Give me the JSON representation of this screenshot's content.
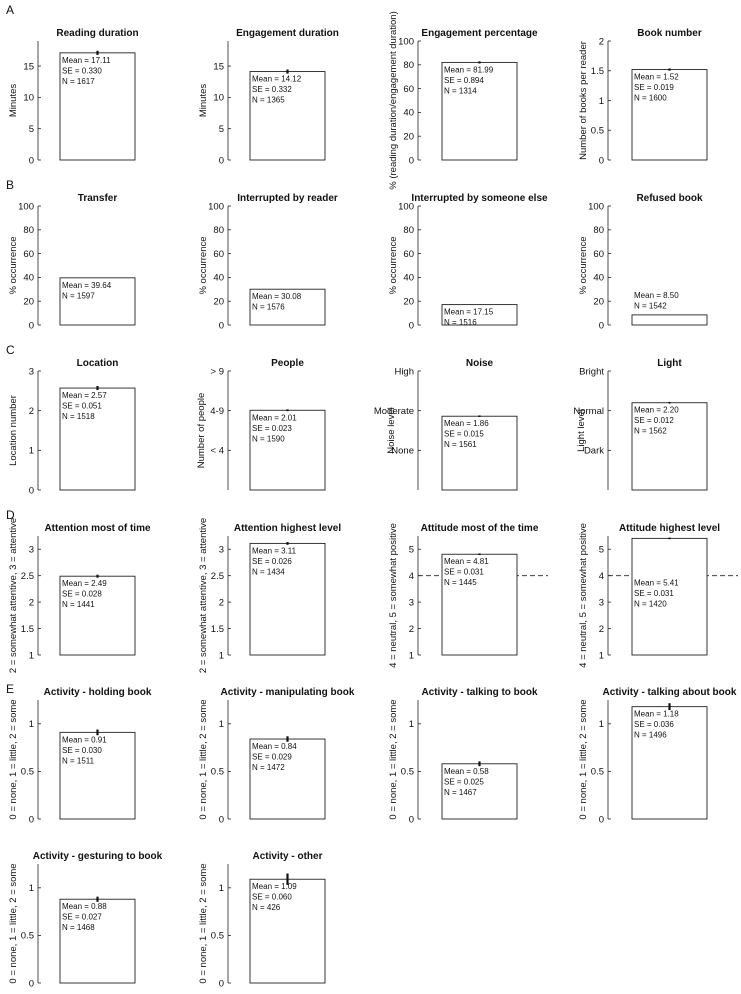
{
  "figure": {
    "section_labels": [
      "A",
      "B",
      "C",
      "D",
      "E"
    ]
  },
  "chart_data": [
    {
      "type": "bar",
      "title": "Reading duration",
      "ylabel": "Minutes",
      "ylim": [
        0,
        19
      ],
      "yticks": [
        0,
        5,
        10,
        15
      ],
      "value": 17.11,
      "se": 0.33,
      "n": 1617,
      "annotation": [
        "Mean = 17.11",
        "SE = 0.330",
        "N = 1617"
      ],
      "ann_pos": "inside"
    },
    {
      "type": "bar",
      "title": "Engagement duration",
      "ylabel": "Minutes",
      "ylim": [
        0,
        19
      ],
      "yticks": [
        0,
        5,
        10,
        15
      ],
      "value": 14.12,
      "se": 0.332,
      "n": 1365,
      "annotation": [
        "Mean = 14.12",
        "SE = 0.332",
        "N = 1365"
      ],
      "ann_pos": "inside"
    },
    {
      "type": "bar",
      "title": "Engagement percentage",
      "ylabel": "% (reading duration/engagement duration)",
      "ylim": [
        0,
        100
      ],
      "yticks": [
        0,
        20,
        40,
        60,
        80,
        100
      ],
      "value": 81.99,
      "se": 0.894,
      "n": 1314,
      "annotation": [
        "Mean = 81.99",
        "SE = 0.894",
        "N = 1314"
      ],
      "ann_pos": "inside"
    },
    {
      "type": "bar",
      "title": "Book number",
      "ylabel": "Number of books per reader",
      "ylim": [
        0,
        2
      ],
      "yticks": [
        0,
        0.5,
        1,
        1.5,
        2
      ],
      "value": 1.52,
      "se": 0.019,
      "n": 1600,
      "annotation": [
        "Mean = 1.52",
        "SE = 0.019",
        "N = 1600"
      ],
      "ann_pos": "inside"
    },
    {
      "type": "bar",
      "title": "Transfer",
      "ylabel": "% occurrence",
      "ylim": [
        0,
        100
      ],
      "yticks": [
        0,
        20,
        40,
        60,
        80,
        100
      ],
      "value": 39.64,
      "n": 1597,
      "annotation": [
        "Mean = 39.64",
        "N = 1597"
      ],
      "ann_pos": "inside"
    },
    {
      "type": "bar",
      "title": "Interrupted by reader",
      "ylabel": "% occurrence",
      "ylim": [
        0,
        100
      ],
      "yticks": [
        0,
        20,
        40,
        60,
        80,
        100
      ],
      "value": 30.08,
      "n": 1576,
      "annotation": [
        "Mean = 30.08",
        "N = 1576"
      ],
      "ann_pos": "inside"
    },
    {
      "type": "bar",
      "title": "Interrupted by someone else",
      "ylabel": "% occurrence",
      "ylim": [
        0,
        100
      ],
      "yticks": [
        0,
        20,
        40,
        60,
        80,
        100
      ],
      "value": 17.15,
      "n": 1516,
      "annotation": [
        "Mean = 17.15",
        "N = 1516"
      ],
      "ann_pos": "inside"
    },
    {
      "type": "bar",
      "title": "Refused book",
      "ylabel": "% occurrence",
      "ylim": [
        0,
        100
      ],
      "yticks": [
        0,
        20,
        40,
        60,
        80,
        100
      ],
      "value": 8.5,
      "n": 1542,
      "annotation": [
        "Mean = 8.50",
        "N = 1542"
      ],
      "ann_pos": "above"
    },
    {
      "type": "bar",
      "title": "Location",
      "ylabel": "Location number",
      "ylim": [
        0,
        3
      ],
      "yticks": [
        0,
        1,
        2,
        3
      ],
      "value": 2.57,
      "se": 0.051,
      "n": 1518,
      "annotation": [
        "Mean = 2.57",
        "SE = 0.051",
        "N = 1518"
      ],
      "ann_pos": "inside"
    },
    {
      "type": "bar",
      "title": "People",
      "ylabel": "Number of people",
      "ylim": [
        0,
        3
      ],
      "yticks": [
        1,
        2,
        3
      ],
      "ytick_labels": [
        "< 4",
        "4-9",
        "> 9"
      ],
      "value": 2.01,
      "se": 0.023,
      "n": 1590,
      "annotation": [
        "Mean = 2.01",
        "SE = 0.023",
        "N = 1590"
      ],
      "ann_pos": "inside"
    },
    {
      "type": "bar",
      "title": "Noise",
      "ylabel": "Noise level",
      "ylim": [
        0,
        3
      ],
      "yticks": [
        1,
        2,
        3
      ],
      "ytick_labels": [
        "None",
        "Moderate",
        "High"
      ],
      "value": 1.86,
      "se": 0.015,
      "n": 1561,
      "annotation": [
        "Mean = 1.86",
        "SE = 0.015",
        "N = 1561"
      ],
      "ann_pos": "inside"
    },
    {
      "type": "bar",
      "title": "Light",
      "ylabel": "Light level",
      "ylim": [
        0,
        3
      ],
      "yticks": [
        1,
        2,
        3
      ],
      "ytick_labels": [
        "Dark",
        "Normal",
        "Bright"
      ],
      "value": 2.2,
      "se": 0.012,
      "n": 1562,
      "annotation": [
        "Mean = 2.20",
        "SE = 0.012",
        "N = 1562"
      ],
      "ann_pos": "inside"
    },
    {
      "type": "bar",
      "title": "Attention most of time",
      "ylabel": "2 = somewhat attentive, 3 = attentive",
      "ylim": [
        1,
        3.25
      ],
      "yticks": [
        1,
        1.5,
        2,
        2.5,
        3
      ],
      "value": 2.49,
      "se": 0.028,
      "n": 1441,
      "annotation": [
        "Mean = 2.49",
        "SE = 0.028",
        "N = 1441"
      ],
      "ann_pos": "inside"
    },
    {
      "type": "bar",
      "title": "Attention highest level",
      "ylabel": "2 = somewhat attentive, 3 = attentive",
      "ylim": [
        1,
        3.25
      ],
      "yticks": [
        1,
        1.5,
        2,
        2.5,
        3
      ],
      "value": 3.11,
      "se": 0.026,
      "n": 1434,
      "annotation": [
        "Mean = 3.11",
        "SE = 0.026",
        "N = 1434"
      ],
      "ann_pos": "inside"
    },
    {
      "type": "bar",
      "title": "Attitude most of the time",
      "ylabel": "4 = neutral, 5 = somewhat positive",
      "ylim": [
        1,
        5.5
      ],
      "yticks": [
        1,
        2,
        3,
        4,
        5
      ],
      "value": 4.81,
      "se": 0.031,
      "n": 1445,
      "annotation": [
        "Mean = 4.81",
        "SE = 0.031",
        "N = 1445"
      ],
      "ann_pos": "inside",
      "ref_line": 4
    },
    {
      "type": "bar",
      "title": "Attitude highest level",
      "ylabel": "4 = neutral, 5 = somewhat positive",
      "ylim": [
        1,
        5.5
      ],
      "yticks": [
        1,
        2,
        3,
        4,
        5
      ],
      "value": 5.41,
      "se": 0.031,
      "n": 1420,
      "annotation": [
        "Mean = 5.41",
        "SE = 0.031",
        "N = 1420"
      ],
      "ann_pos": "below_ref",
      "ref_line": 4
    },
    {
      "type": "bar",
      "title": "Activity - holding book",
      "ylabel": "0 = none, 1 = little, 2 = some",
      "ylim": [
        0,
        1.25
      ],
      "yticks": [
        0,
        0.5,
        1
      ],
      "value": 0.91,
      "se": 0.03,
      "n": 1511,
      "annotation": [
        "Mean = 0.91",
        "SE = 0.030",
        "N = 1511"
      ],
      "ann_pos": "inside"
    },
    {
      "type": "bar",
      "title": "Activity - manipulating book",
      "ylabel": "0 = none, 1 = little, 2 = some",
      "ylim": [
        0,
        1.25
      ],
      "yticks": [
        0,
        0.5,
        1
      ],
      "value": 0.84,
      "se": 0.029,
      "n": 1472,
      "annotation": [
        "Mean = 0.84",
        "SE = 0.029",
        "N = 1472"
      ],
      "ann_pos": "inside"
    },
    {
      "type": "bar",
      "title": "Activity - talking to book",
      "ylabel": "0 = none, 1 = little, 2 = some",
      "ylim": [
        0,
        1.25
      ],
      "yticks": [
        0,
        0.5,
        1
      ],
      "value": 0.58,
      "se": 0.025,
      "n": 1467,
      "annotation": [
        "Mean = 0.58",
        "SE = 0.025",
        "N = 1467"
      ],
      "ann_pos": "inside"
    },
    {
      "type": "bar",
      "title": "Activity - talking about book",
      "ylabel": "0 = none, 1 = little, 2 = some",
      "ylim": [
        0,
        1.25
      ],
      "yticks": [
        0,
        0.5,
        1
      ],
      "value": 1.18,
      "se": 0.036,
      "n": 1496,
      "annotation": [
        "Mean = 1.18",
        "SE = 0.036",
        "N = 1496"
      ],
      "ann_pos": "inside"
    },
    {
      "type": "bar",
      "title": "Activity - gesturing to book",
      "ylabel": "0 = none, 1 = little, 2 = some",
      "ylim": [
        0,
        1.25
      ],
      "yticks": [
        0,
        0.5,
        1
      ],
      "value": 0.88,
      "se": 0.027,
      "n": 1468,
      "annotation": [
        "Mean = 0.88",
        "SE = 0.027",
        "N = 1468"
      ],
      "ann_pos": "inside"
    },
    {
      "type": "bar",
      "title": "Activity - other",
      "ylabel": "0 = none, 1 = little, 2 = some",
      "ylim": [
        0,
        1.25
      ],
      "yticks": [
        0,
        0.5,
        1
      ],
      "value": 1.09,
      "se": 0.06,
      "n": 426,
      "annotation": [
        "Mean = 1.09",
        "SE = 0.060",
        "N = 426"
      ],
      "ann_pos": "inside"
    }
  ]
}
